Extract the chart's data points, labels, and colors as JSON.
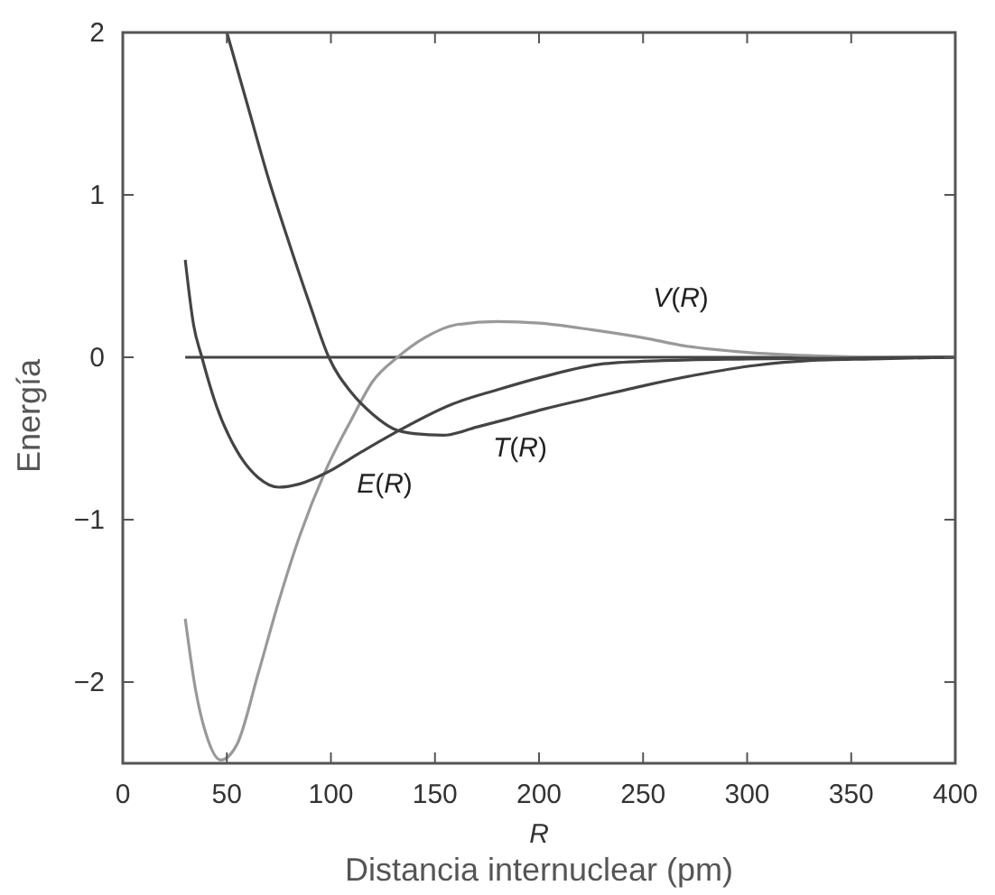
{
  "chart_data": {
    "type": "line",
    "xlabel": "R",
    "ylabel": "Energía",
    "annotations": [
      "Distancia internuclear (pm)"
    ],
    "xlim": [
      0,
      400
    ],
    "xticks": [
      0,
      50,
      100,
      150,
      200,
      250,
      300,
      350,
      400
    ],
    "ylim": [
      -2.5,
      2
    ],
    "yticks": [
      -2,
      -1,
      0,
      1,
      2
    ],
    "grid": false,
    "marker": "none",
    "line_style": "solid",
    "ref_lines": [
      {
        "axis": "y",
        "value": 0,
        "color": "#444444"
      }
    ],
    "series": [
      {
        "name": "V(R)",
        "color": "#999999",
        "x": [
          30,
          35,
          40,
          47,
          55,
          65,
          75,
          85,
          97,
          110,
          120,
          132,
          145,
          160,
          180,
          200,
          225,
          250,
          270,
          300,
          330,
          360,
          400
        ],
        "values": [
          -1.61,
          -2.05,
          -2.32,
          -2.48,
          -2.38,
          -1.95,
          -1.5,
          -1.1,
          -0.71,
          -0.38,
          -0.15,
          0,
          0.12,
          0.2,
          0.22,
          0.21,
          0.17,
          0.12,
          0.07,
          0.03,
          0.01,
          0,
          0
        ]
      },
      {
        "name": "T(R)",
        "color": "#444444",
        "x": [
          50,
          60,
          70,
          80,
          90,
          99,
          110,
          120,
          130,
          140,
          154,
          170,
          185,
          202,
          225,
          252,
          275,
          304,
          330,
          360,
          400
        ],
        "values": [
          2.0,
          1.55,
          1.1,
          0.7,
          0.32,
          0,
          -0.22,
          -0.35,
          -0.44,
          -0.47,
          -0.48,
          -0.43,
          -0.38,
          -0.32,
          -0.25,
          -0.17,
          -0.11,
          -0.05,
          -0.02,
          -0.01,
          0
        ]
      },
      {
        "name": "E(R)",
        "color": "#444444",
        "x": [
          30,
          34,
          38,
          45,
          55,
          65,
          75,
          85,
          98,
          115,
          130,
          158,
          180,
          202,
          231,
          260,
          300,
          400
        ],
        "values": [
          0.6,
          0.2,
          0,
          -0.3,
          -0.58,
          -0.74,
          -0.8,
          -0.78,
          -0.71,
          -0.58,
          -0.47,
          -0.29,
          -0.2,
          -0.12,
          -0.04,
          -0.02,
          -0.01,
          0
        ]
      }
    ]
  }
}
